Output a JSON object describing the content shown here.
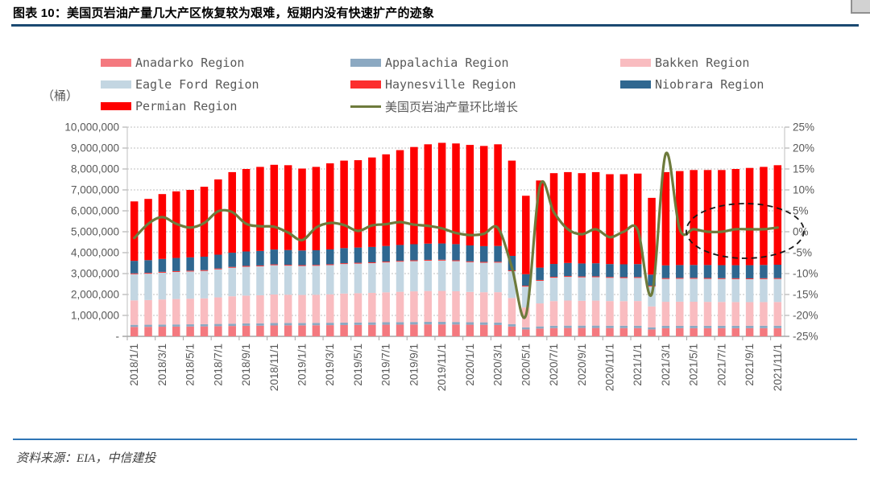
{
  "header": {
    "title": "图表 10：美国页岩油产量几大产区恢复较为艰难，短期内没有快速扩产的迹象"
  },
  "footer": {
    "source": "资料来源：EIA，中信建投"
  },
  "colors": {
    "title_rule": "#1a4971",
    "footer_rule": "#2e74b5",
    "axis_text": "#595959",
    "gridline": "#bfbfbf",
    "axis_line": "#a6a6a6",
    "annotation": "#1a1a1a"
  },
  "legend": {
    "items": [
      {
        "label": "Anadarko Region",
        "color": "#f4797f",
        "type": "bar"
      },
      {
        "label": "Appalachia Region",
        "color": "#8ca9c2",
        "type": "bar"
      },
      {
        "label": "Bakken Region",
        "color": "#f9bcc0",
        "type": "bar"
      },
      {
        "label": "Eagle Ford Region",
        "color": "#c3d6e2",
        "type": "bar"
      },
      {
        "label": "Haynesville Region",
        "color": "#fc2e2e",
        "type": "bar"
      },
      {
        "label": "Niobrara Region",
        "color": "#2f6790",
        "type": "bar"
      },
      {
        "label": "Permian Region",
        "color": "#fe0000",
        "type": "bar"
      },
      {
        "label": "美国页岩油产量环比增长",
        "color": "#6e7b3c",
        "type": "line"
      }
    ]
  },
  "chart_data": {
    "type": "bar",
    "subtype": "stacked-bars-with-line",
    "unit_label": "（桶）",
    "x": [
      "2018/1/1",
      "2018/2/1",
      "2018/3/1",
      "2018/4/1",
      "2018/5/1",
      "2018/6/1",
      "2018/7/1",
      "2018/8/1",
      "2018/9/1",
      "2018/10/1",
      "2018/11/1",
      "2018/12/1",
      "2019/1/1",
      "2019/2/1",
      "2019/3/1",
      "2019/4/1",
      "2019/5/1",
      "2019/6/1",
      "2019/7/1",
      "2019/8/1",
      "2019/9/1",
      "2019/10/1",
      "2019/11/1",
      "2019/12/1",
      "2020/1/1",
      "2020/2/1",
      "2020/3/1",
      "2020/4/1",
      "2020/5/1",
      "2020/6/1",
      "2020/7/1",
      "2020/8/1",
      "2020/9/1",
      "2020/10/1",
      "2020/11/1",
      "2020/12/1",
      "2021/1/1",
      "2021/2/1",
      "2021/3/1",
      "2021/4/1",
      "2021/5/1",
      "2021/6/1",
      "2021/7/1",
      "2021/8/1",
      "2021/9/1",
      "2021/10/1",
      "2021/11/1"
    ],
    "x_tick_labels": [
      "2018/1/1",
      "2018/3/1",
      "2018/5/1",
      "2018/7/1",
      "2018/9/1",
      "2018/11/1",
      "2019/1/1",
      "2019/3/1",
      "2019/5/1",
      "2019/7/1",
      "2019/9/1",
      "2019/11/1",
      "2020/1/1",
      "2020/3/1",
      "2020/5/1",
      "2020/7/1",
      "2020/9/1",
      "2020/11/1",
      "2021/1/1",
      "2021/3/1",
      "2021/5/1",
      "2021/7/1",
      "2021/9/1",
      "2021/11/1"
    ],
    "series": [
      {
        "name": "Anadarko Region",
        "color": "#f4797f",
        "values": [
          450000,
          455000,
          460000,
          465000,
          470000,
          475000,
          485000,
          495000,
          505000,
          510000,
          520000,
          525000,
          525000,
          530000,
          535000,
          540000,
          545000,
          550000,
          555000,
          560000,
          565000,
          570000,
          570000,
          565000,
          555000,
          550000,
          540000,
          470000,
          330000,
          370000,
          395000,
          400000,
          400000,
          400000,
          395000,
          395000,
          395000,
          330000,
          390000,
          390000,
          390000,
          390000,
          390000,
          390000,
          390000,
          390000,
          390000
        ]
      },
      {
        "name": "Appalachia Region",
        "color": "#8ca9c2",
        "values": [
          100000,
          100000,
          102000,
          104000,
          105000,
          106000,
          108000,
          110000,
          112000,
          113000,
          115000,
          115000,
          114000,
          114000,
          115000,
          116000,
          117000,
          118000,
          119000,
          120000,
          121000,
          122000,
          122000,
          121000,
          120000,
          119000,
          120000,
          115000,
          100000,
          105000,
          110000,
          112000,
          112000,
          113000,
          112000,
          112000,
          113000,
          100000,
          112000,
          113000,
          114000,
          114000,
          115000,
          115000,
          116000,
          117000,
          118000
        ]
      },
      {
        "name": "Bakken Region",
        "color": "#f9bcc0",
        "values": [
          1170000,
          1180000,
          1200000,
          1215000,
          1225000,
          1235000,
          1270000,
          1310000,
          1330000,
          1340000,
          1365000,
          1350000,
          1340000,
          1345000,
          1360000,
          1390000,
          1400000,
          1410000,
          1430000,
          1450000,
          1465000,
          1475000,
          1480000,
          1470000,
          1450000,
          1440000,
          1450000,
          1250000,
          950000,
          1100000,
          1180000,
          1200000,
          1190000,
          1195000,
          1180000,
          1175000,
          1180000,
          1000000,
          1150000,
          1155000,
          1150000,
          1145000,
          1140000,
          1135000,
          1130000,
          1130000,
          1135000
        ]
      },
      {
        "name": "Eagle Ford Region",
        "color": "#c3d6e2",
        "values": [
          1250000,
          1260000,
          1280000,
          1295000,
          1300000,
          1310000,
          1340000,
          1365000,
          1380000,
          1385000,
          1400000,
          1390000,
          1385000,
          1385000,
          1395000,
          1410000,
          1415000,
          1420000,
          1430000,
          1440000,
          1445000,
          1450000,
          1450000,
          1440000,
          1420000,
          1410000,
          1415000,
          1280000,
          1000000,
          1080000,
          1120000,
          1130000,
          1120000,
          1120000,
          1110000,
          1105000,
          1105000,
          950000,
          1090000,
          1095000,
          1100000,
          1100000,
          1095000,
          1095000,
          1095000,
          1100000,
          1100000
        ]
      },
      {
        "name": "Haynesville Region",
        "color": "#fc2e2e",
        "values": [
          40000,
          40000,
          40000,
          40000,
          40000,
          40000,
          40000,
          40000,
          40000,
          40000,
          40000,
          40000,
          40000,
          40000,
          40000,
          40000,
          40000,
          40000,
          40000,
          40000,
          40000,
          40000,
          40000,
          40000,
          40000,
          40000,
          40000,
          40000,
          40000,
          40000,
          40000,
          40000,
          40000,
          40000,
          40000,
          40000,
          40000,
          40000,
          40000,
          40000,
          40000,
          40000,
          40000,
          40000,
          40000,
          40000,
          40000
        ]
      },
      {
        "name": "Niobrara Region",
        "color": "#2f6790",
        "values": [
          600000,
          608000,
          618000,
          628000,
          635000,
          642000,
          660000,
          678000,
          690000,
          695000,
          710000,
          706000,
          700000,
          702000,
          710000,
          722000,
          728000,
          735000,
          745000,
          758000,
          768000,
          775000,
          778000,
          772000,
          760000,
          752000,
          755000,
          690000,
          550000,
          590000,
          615000,
          625000,
          622000,
          625000,
          618000,
          616000,
          620000,
          530000,
          610000,
          615000,
          618000,
          620000,
          622000,
          625000,
          630000,
          635000,
          640000
        ]
      },
      {
        "name": "Permian Region",
        "color": "#fe0000",
        "values": [
          2840000,
          2927000,
          3100000,
          3183000,
          3225000,
          3342000,
          3597000,
          3852000,
          3943000,
          4017000,
          4050000,
          4054000,
          3916000,
          3984000,
          4115000,
          4182000,
          4175000,
          4277000,
          4381000,
          4532000,
          4646000,
          4748000,
          4810000,
          4812000,
          4805000,
          4789000,
          4860000,
          4555000,
          3750000,
          4165000,
          4340000,
          4343000,
          4316000,
          4357000,
          4295000,
          4307000,
          4327000,
          3670000,
          4458000,
          4492000,
          4538000,
          4541000,
          4548000,
          4600000,
          4649000,
          4688000,
          4757000
        ]
      }
    ],
    "line_series": {
      "name": "美国页岩油产量环比增长",
      "color": "#6e7b3c",
      "values_pct": [
        -1.5,
        1.9,
        3.5,
        1.9,
        1.0,
        2.1,
        4.9,
        4.7,
        1.9,
        1.3,
        1.2,
        -0.2,
        -2.0,
        1.0,
        2.1,
        1.6,
        0.2,
        1.5,
        1.8,
        2.3,
        1.7,
        1.4,
        0.8,
        -0.3,
        -0.8,
        -0.5,
        0.9,
        -8.5,
        -20.0,
        10.9,
        4.7,
        0.6,
        -0.6,
        0.6,
        -1.3,
        0.0,
        0.4,
        -14.9,
        18.6,
        0.6,
        0.6,
        0.0,
        0.0,
        0.6,
        0.6,
        0.6,
        1.0
      ]
    },
    "left_axis": {
      "title": "（桶）",
      "min": 0,
      "max": 10000000,
      "ticks": [
        "10,000,000",
        "9,000,000",
        "8,000,000",
        "7,000,000",
        "6,000,000",
        "5,000,000",
        "4,000,000",
        "3,000,000",
        "2,000,000",
        "1,000,000",
        "-"
      ]
    },
    "right_axis": {
      "min": -0.25,
      "max": 0.25,
      "ticks": [
        "25%",
        "20%",
        "15%",
        "10%",
        "5%",
        "0%",
        "-5%",
        "-10%",
        "-15%",
        "-20%",
        "-25%"
      ]
    },
    "annotation": {
      "shape": "dashed-ellipse",
      "around": "2021/5/1 - 2021/11/1 growth line near 0%"
    },
    "grid": true,
    "legend_position": "top"
  }
}
